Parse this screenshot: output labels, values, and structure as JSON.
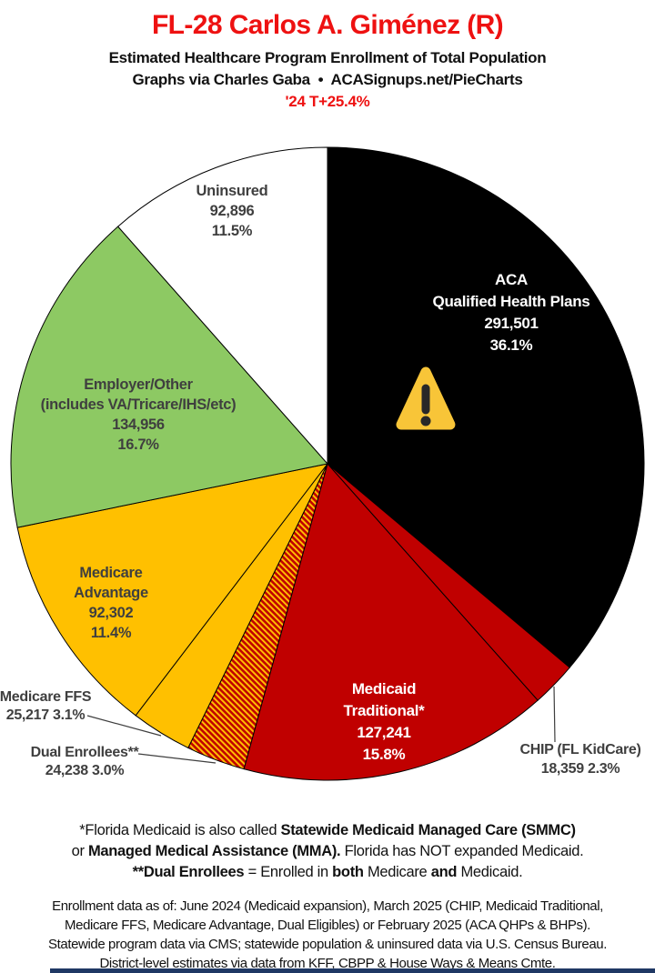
{
  "header": {
    "title": "FL-28 Carlos A. Giménez (R)",
    "subtitle": "Estimated Healthcare Program Enrollment of Total Population",
    "credit": "Graphs via Charles Gaba  •  ACASignups.net/PieCharts",
    "trend": "'24 T+25.4%"
  },
  "chart_data": {
    "type": "pie",
    "title": "Estimated Healthcare Program Enrollment of Total Population",
    "start": "12-o-clock",
    "direction": "clockwise",
    "slices": [
      {
        "id": "aca-qhp",
        "label": "ACA Qualified Health Plans",
        "value": 291501,
        "display_value": "291,501",
        "pct": 36.1,
        "color": "#000000"
      },
      {
        "id": "chip",
        "label": "CHIP (FL KidCare)",
        "value": 18359,
        "display_value": "18,359",
        "pct": 2.3,
        "color": "#c00000"
      },
      {
        "id": "medicaid-traditional",
        "label": "Medicaid Traditional*",
        "value": 127241,
        "display_value": "127,241",
        "pct": 15.8,
        "color": "#c00000"
      },
      {
        "id": "dual-enrollees",
        "label": "Dual Enrollees**",
        "value": 24238,
        "display_value": "24,238",
        "pct": 3.0,
        "color": "#c00000",
        "pattern": "diagonal-stripes",
        "pattern_color": "#ffc000"
      },
      {
        "id": "medicare-ffs",
        "label": "Medicare FFS",
        "value": 25217,
        "display_value": "25,217",
        "pct": 3.1,
        "color": "#ffc000"
      },
      {
        "id": "medicare-advantage",
        "label": "Medicare Advantage",
        "value": 92302,
        "display_value": "92,302",
        "pct": 11.4,
        "color": "#ffc000"
      },
      {
        "id": "employer-other",
        "label": "Employer/Other (includes VA/Tricare/IHS/etc)",
        "value": 134956,
        "display_value": "134,956",
        "pct": 16.7,
        "color": "#8dc963"
      },
      {
        "id": "uninsured",
        "label": "Uninsured",
        "value": 92896,
        "display_value": "92,896",
        "pct": 11.5,
        "color": "#ffffff"
      }
    ]
  },
  "labels": {
    "uninsured": {
      "line1": "Uninsured",
      "line2": "92,896",
      "line3": "11.5%"
    },
    "aca": {
      "line1": "ACA",
      "line2": "Qualified Health Plans",
      "line3": "291,501",
      "line4": "36.1%"
    },
    "employer": {
      "line1": "Employer/Other",
      "line2": "(includes VA/Tricare/IHS/etc)",
      "line3": "134,956",
      "line4": "16.7%"
    },
    "medicare_advantage": {
      "line1": "Medicare",
      "line2": "Advantage",
      "line3": "92,302",
      "line4": "11.4%"
    },
    "medicare_ffs": {
      "line1": "Medicare FFS",
      "line2": "25,217 3.1%"
    },
    "dual": {
      "line1": "Dual Enrollees**",
      "line2": "24,238 3.0%"
    },
    "medicaid": {
      "line1": "Medicaid",
      "line2": "Traditional*",
      "line3": "127,241",
      "line4": "15.8%"
    },
    "chip": {
      "line1": "CHIP (FL KidCare)",
      "line2": "18,359 2.3%"
    }
  },
  "icons": {
    "warning": "warning-triangle"
  },
  "colors": {
    "accent_red": "#ee1111",
    "wedge_red": "#c00000",
    "wedge_gold": "#ffc000",
    "wedge_green": "#8dc963",
    "label_dark": "#3f3f3f",
    "bottom_bar_navy": "#1f3864"
  },
  "footnotes": {
    "lines": [
      [
        {
          "t": "*Florida Medicaid is also called ",
          "b": false
        },
        {
          "t": "Statewide Medicaid Managed Care (SMMC)",
          "b": true
        }
      ],
      [
        {
          "t": "or ",
          "b": false
        },
        {
          "t": "Managed Medical Assistance (MMA).",
          "b": true
        },
        {
          "t": " Florida has NOT expanded Medicaid.",
          "b": false
        }
      ],
      [
        {
          "t": "**Dual Enrollees",
          "b": true
        },
        {
          "t": " = Enrolled in ",
          "b": false
        },
        {
          "t": "both",
          "b": true
        },
        {
          "t": " Medicare ",
          "b": false
        },
        {
          "t": "and",
          "b": true
        },
        {
          "t": " Medicaid.",
          "b": false
        }
      ]
    ]
  },
  "sources": {
    "lines": [
      "Enrollment data as of: June 2024 (Medicaid expansion), March 2025 (CHIP, Medicaid Traditional,",
      "Medicare FFS, Medicare Advantage, Dual Eligibles) or February 2025 (ACA QHPs & BHPs).",
      "Statewide program data via CMS; statewide population & uninsured data via U.S. Census Bureau.",
      "District-level estimates via data from KFF, CBPP & House Ways & Means Cmte."
    ]
  }
}
